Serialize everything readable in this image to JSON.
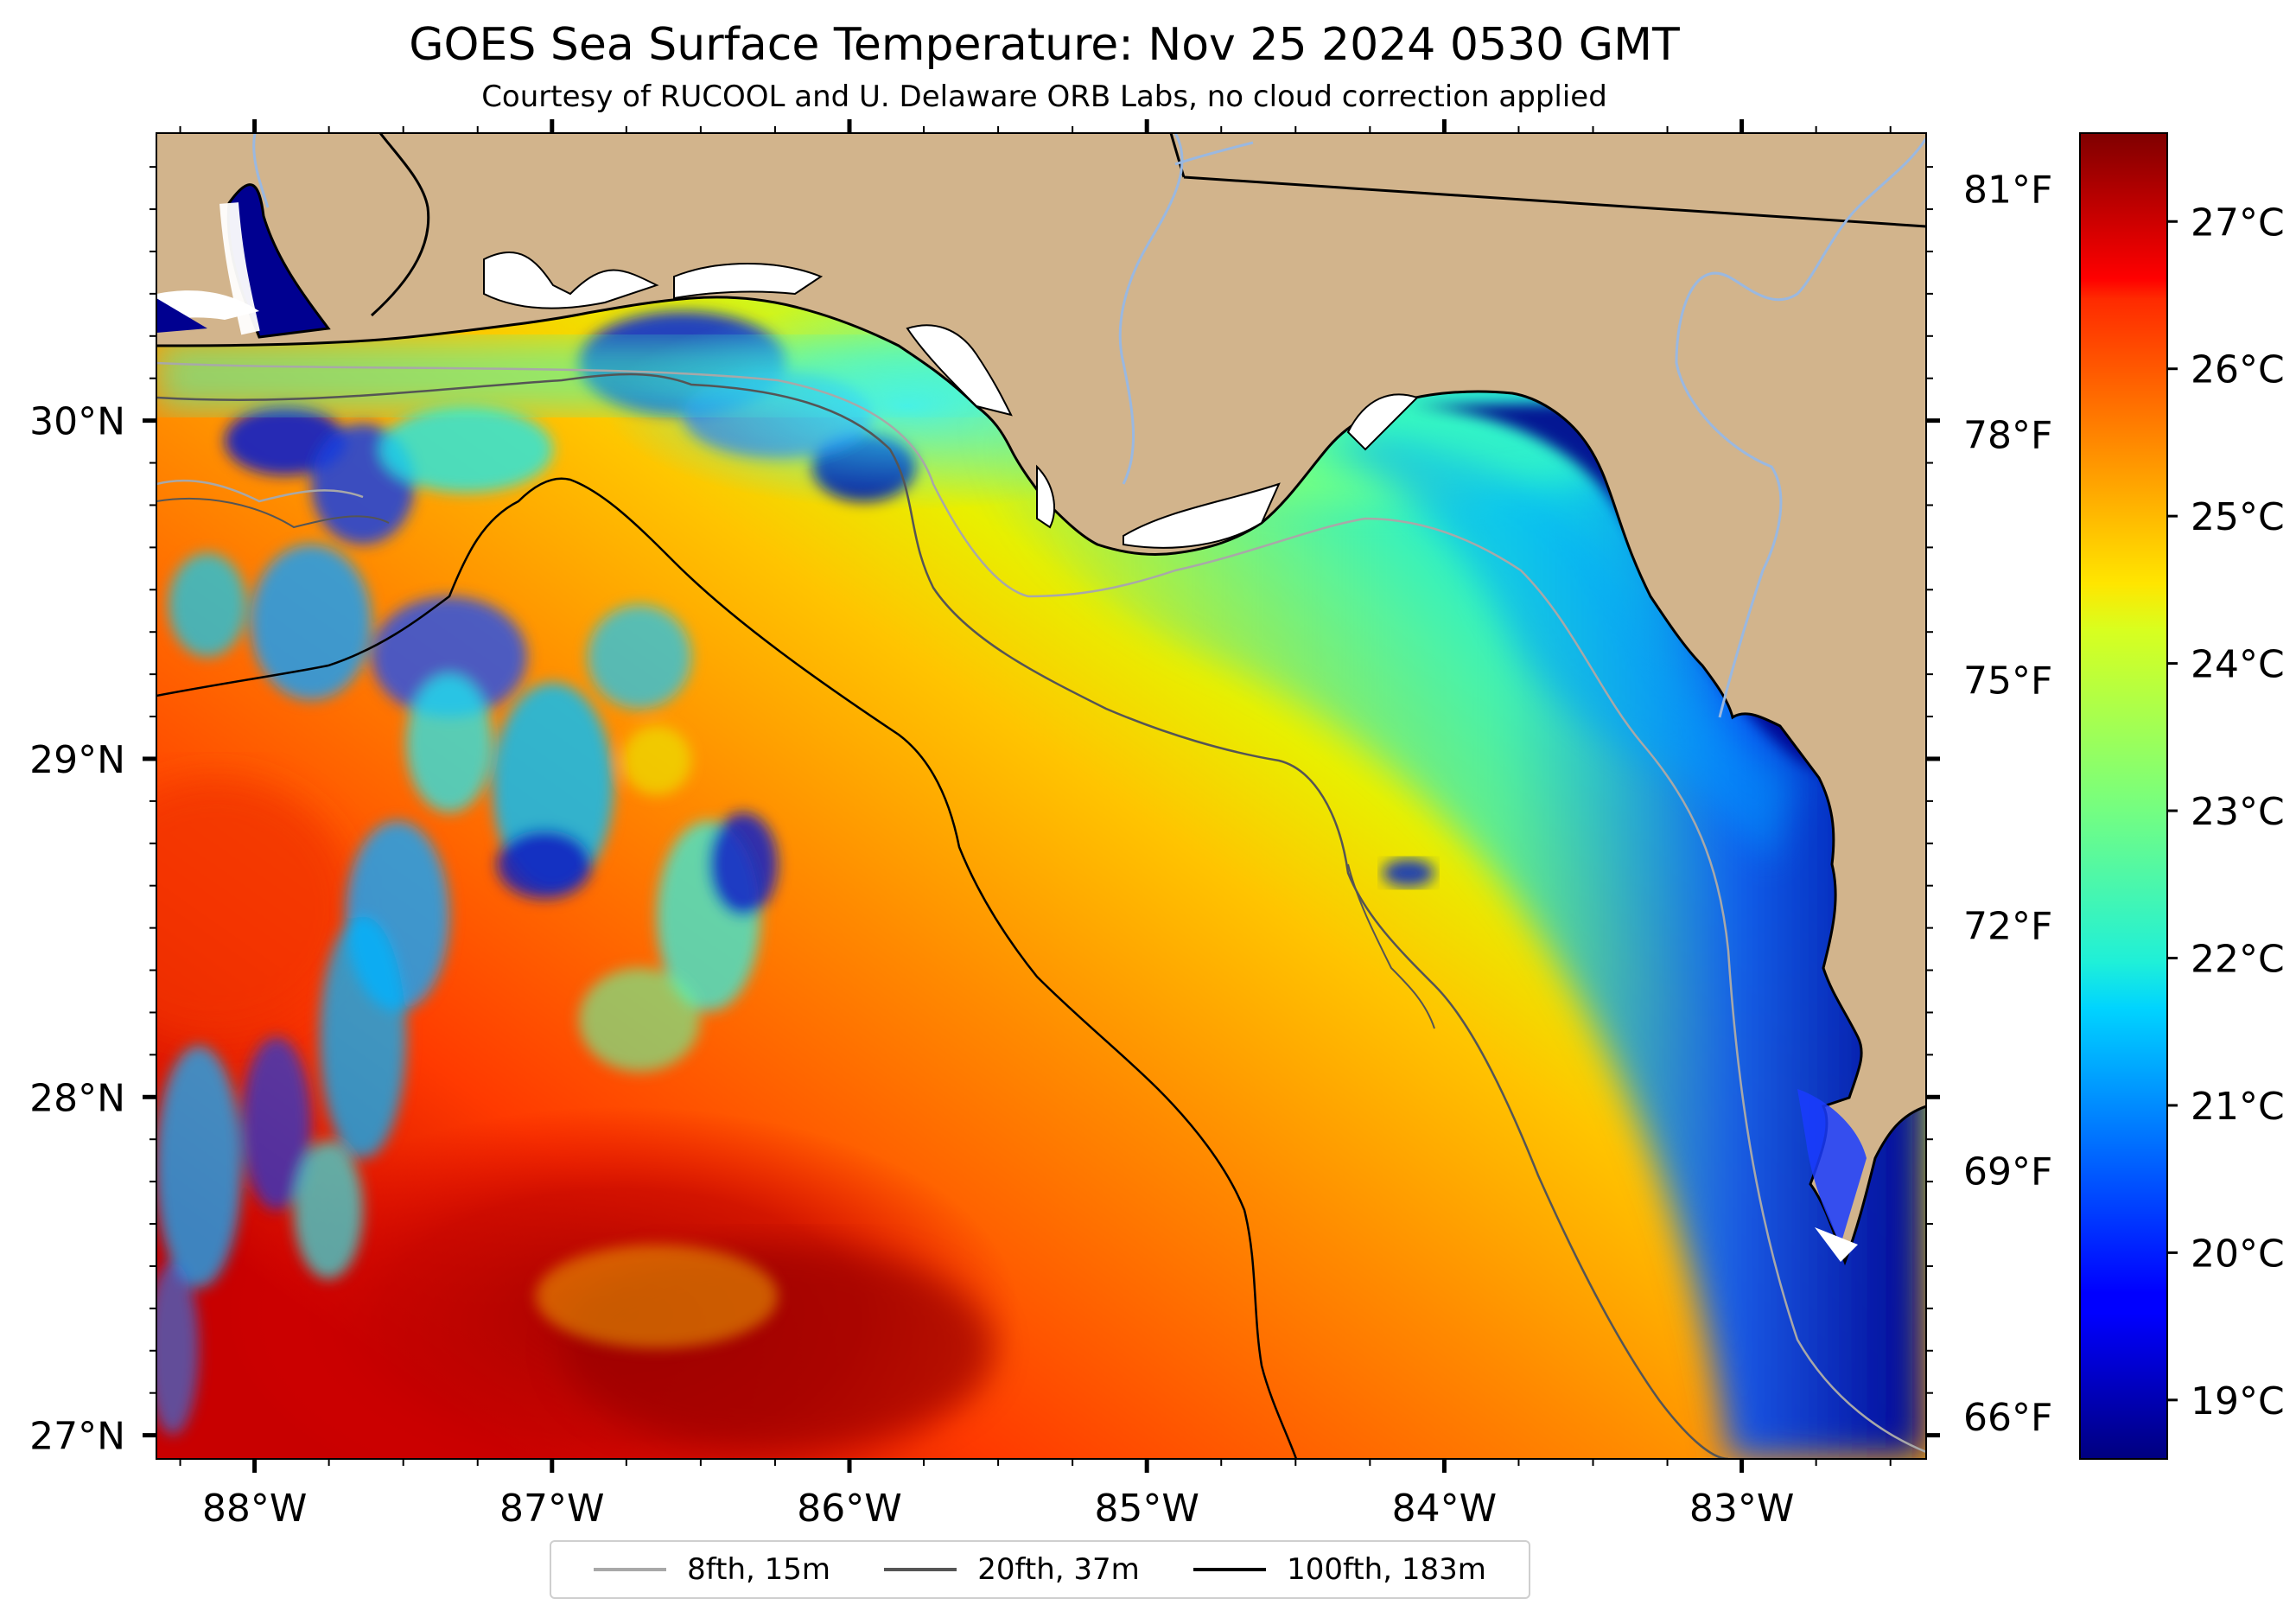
{
  "header": {
    "title": "GOES Sea Surface Temperature: Nov 25 2024 0530 GMT",
    "subtitle": "Courtesy of RUCOOL and U. Delaware ORB Labs, no cloud correction applied"
  },
  "map": {
    "region": "Northeastern Gulf of Mexico / Florida Panhandle",
    "lon_range": [
      -88.33,
      -82.38
    ],
    "lat_range": [
      26.93,
      30.85
    ],
    "lon_ticks": [
      "88°W",
      "87°W",
      "86°W",
      "85°W",
      "84°W",
      "83°W"
    ],
    "lat_ticks": [
      "30°N",
      "29°N",
      "28°N",
      "27°N"
    ],
    "colors": {
      "land": "#d2b48c",
      "coastline": "#000000",
      "rivers": "#9ab8e0",
      "state_line": "#000000"
    }
  },
  "colorbar": {
    "colormap": "jet",
    "range_c": [
      18.6,
      27.6
    ],
    "celsius_labels": [
      "27°C",
      "26°C",
      "25°C",
      "24°C",
      "23°C",
      "22°C",
      "21°C",
      "20°C",
      "19°C"
    ],
    "fahrenheit_labels": [
      "81°F",
      "78°F",
      "75°F",
      "72°F",
      "69°F",
      "66°F"
    ]
  },
  "legend": {
    "items": [
      {
        "label": "8fth, 15m",
        "color": "#a8a8a8"
      },
      {
        "label": "20fth, 37m",
        "color": "#555555"
      },
      {
        "label": "100fth, 183m",
        "color": "#000000"
      }
    ]
  }
}
